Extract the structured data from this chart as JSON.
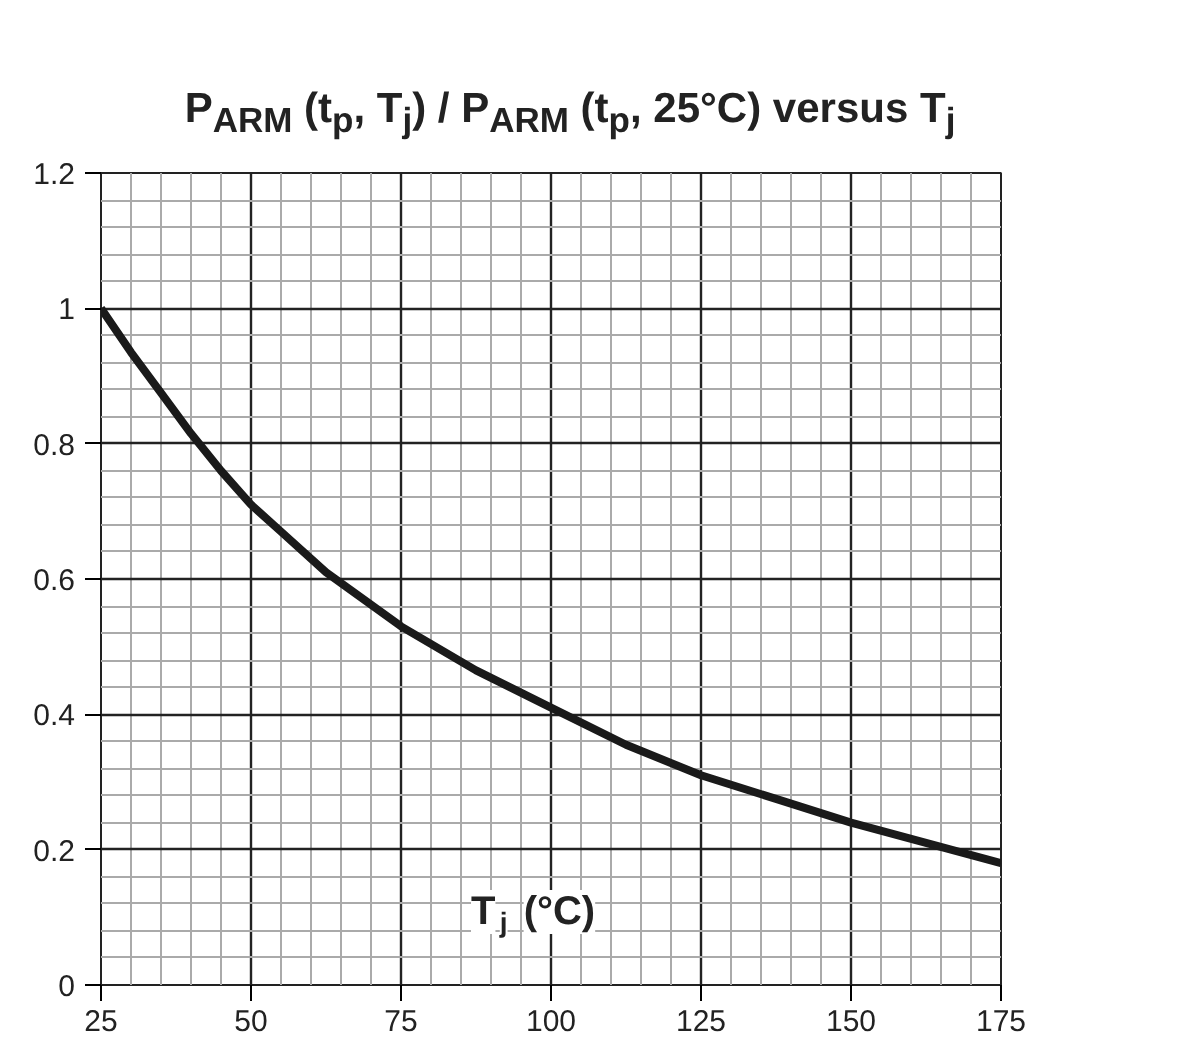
{
  "chart_data": {
    "type": "line",
    "title": "P$_{ARM}$ (t$_{p}$, T$_{j}$) / P$_{ARM}$ (t$_{p}$, 25°C) versus T$_{j}$",
    "xlabel": "T$_{j}$ (°C)",
    "x": [
      25,
      30,
      35,
      40,
      45,
      50,
      55,
      62.5,
      75,
      87.5,
      100,
      112.5,
      125,
      137.5,
      150,
      162.5,
      175
    ],
    "series": [
      {
        "color": "#1a1a1a",
        "values": [
          1.0,
          0.935,
          0.875,
          0.815,
          0.76,
          0.71,
          0.67,
          0.61,
          0.53,
          0.465,
          0.41,
          0.355,
          0.31,
          0.275,
          0.24,
          0.21,
          0.18
        ]
      }
    ],
    "xlim": [
      25,
      175
    ],
    "xticks": [
      25,
      50,
      75,
      100,
      125,
      150,
      175
    ],
    "ylim": [
      0,
      1.2
    ],
    "yticks": [
      0,
      0.2,
      0.4,
      0.6,
      0.8,
      1,
      1.2
    ],
    "grid": true,
    "marker": "none",
    "line_style": "solid"
  }
}
